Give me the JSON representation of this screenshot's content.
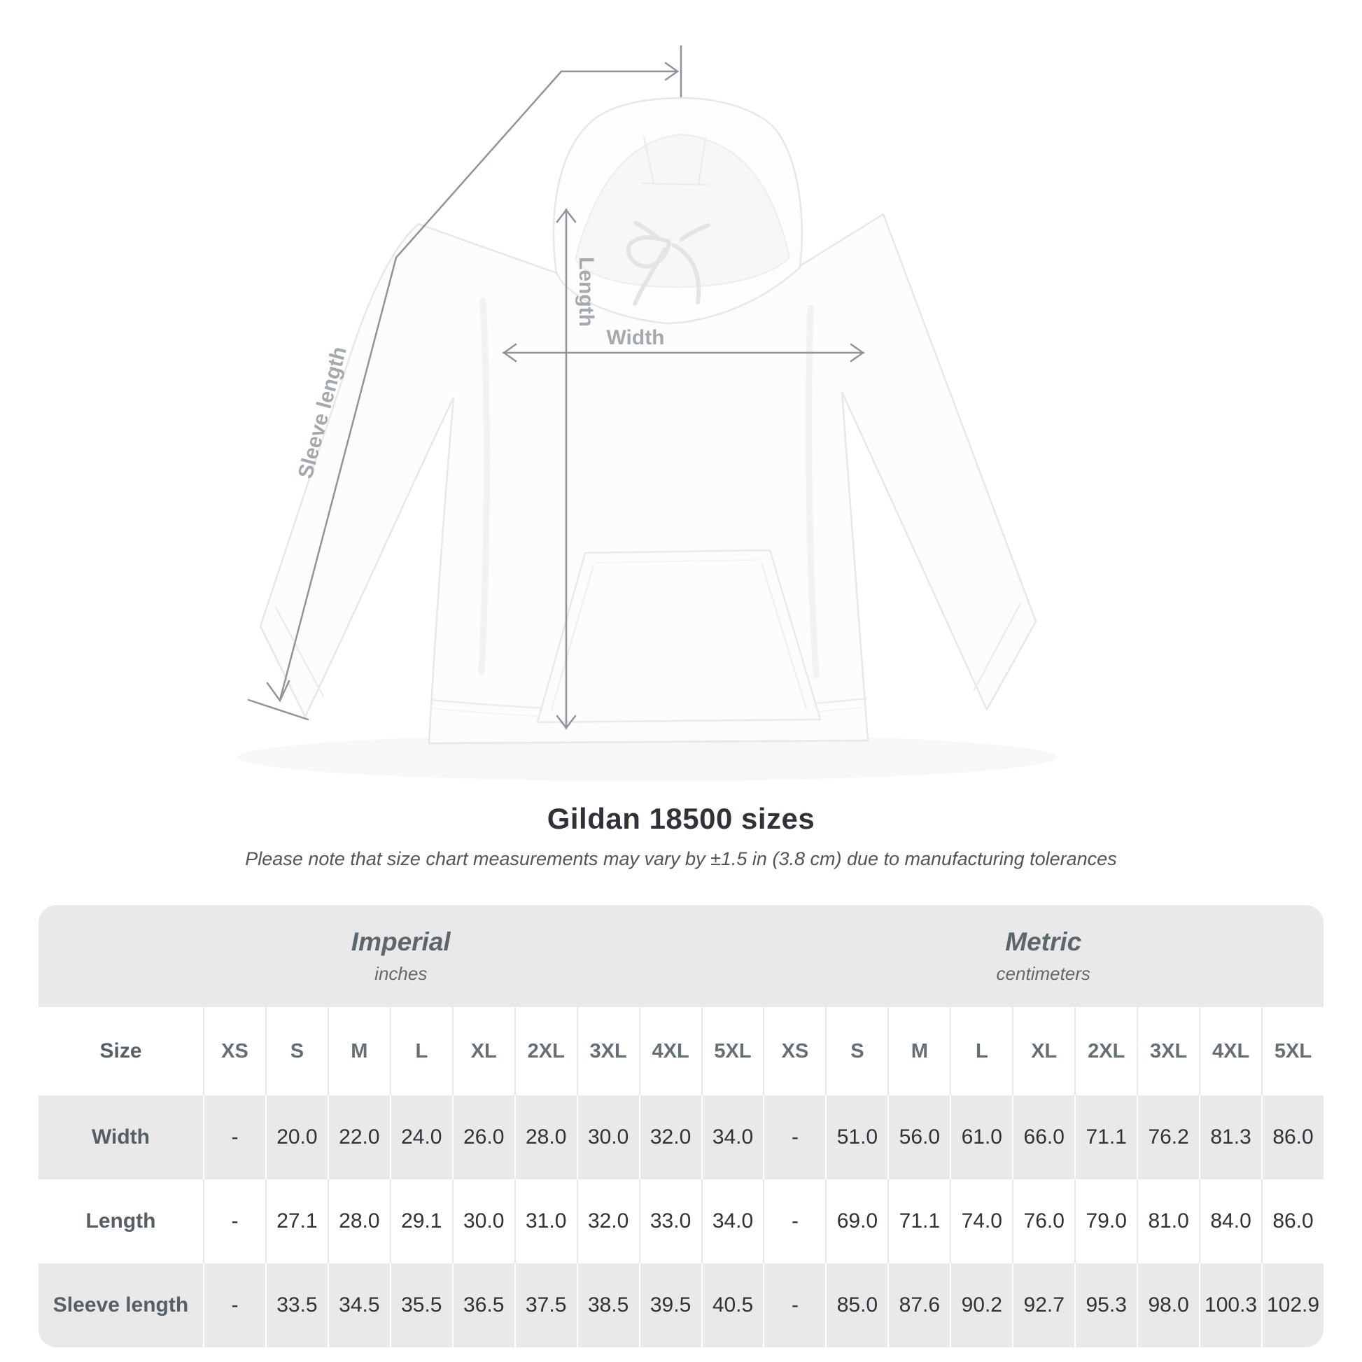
{
  "title": "Gildan 18500 sizes",
  "subtitle": "Please note that size chart measurements may vary by ±1.5 in (3.8 cm) due to manufacturing tolerances",
  "diagram": {
    "labels": {
      "length": "Length",
      "width": "Width",
      "sleeve": "Sleeve length"
    }
  },
  "colors": {
    "table_band": "#e9e9e9",
    "row_alternate": "#e9e9e9",
    "arrow": "#8f9499",
    "diagram_label": "#a4a9ad",
    "title_text": "#2f3337",
    "number_text": "#2e3338",
    "group_header_text": "#5c666c"
  },
  "chart_data": {
    "type": "table",
    "title": "Gildan 18500 sizes",
    "subtitle": "Please note that size chart measurements may vary by ±1.5 in (3.8 cm) due to manufacturing tolerances",
    "groups": [
      {
        "label": "Imperial",
        "unit": "inches"
      },
      {
        "label": "Metric",
        "unit": "centimeters"
      }
    ],
    "size_column_header": "Size",
    "sizes": [
      "XS",
      "S",
      "M",
      "L",
      "XL",
      "2XL",
      "3XL",
      "4XL",
      "5XL"
    ],
    "rows": [
      {
        "label": "Width",
        "imperial": [
          "-",
          "20.0",
          "22.0",
          "24.0",
          "26.0",
          "28.0",
          "30.0",
          "32.0",
          "34.0"
        ],
        "metric": [
          "-",
          "51.0",
          "56.0",
          "61.0",
          "66.0",
          "71.1",
          "76.2",
          "81.3",
          "86.0"
        ]
      },
      {
        "label": "Length",
        "imperial": [
          "-",
          "27.1",
          "28.0",
          "29.1",
          "30.0",
          "31.0",
          "32.0",
          "33.0",
          "34.0"
        ],
        "metric": [
          "-",
          "69.0",
          "71.1",
          "74.0",
          "76.0",
          "79.0",
          "81.0",
          "84.0",
          "86.0"
        ]
      },
      {
        "label": "Sleeve length",
        "imperial": [
          "-",
          "33.5",
          "34.5",
          "35.5",
          "36.5",
          "37.5",
          "38.5",
          "39.5",
          "40.5"
        ],
        "metric": [
          "-",
          "85.0",
          "87.6",
          "90.2",
          "92.7",
          "95.3",
          "98.0",
          "100.3",
          "102.9"
        ]
      }
    ]
  }
}
